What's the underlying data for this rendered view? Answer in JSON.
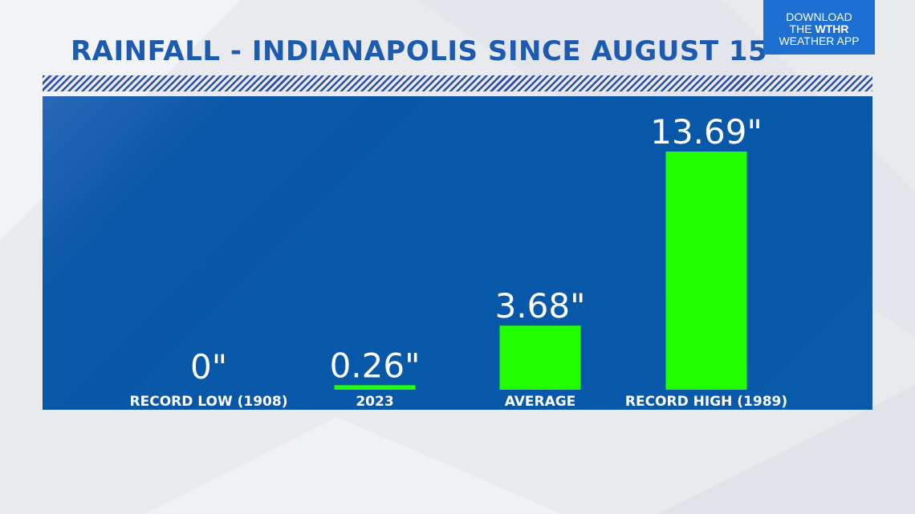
{
  "header": {
    "title": "RAINFALL - INDIANAPOLIS SINCE AUGUST 15"
  },
  "promo": {
    "line1": "DOWNLOAD",
    "line2_prefix": "THE ",
    "line2_brand": "WTHR",
    "line3": "WEATHER APP"
  },
  "colors": {
    "title": "#1c5bb0",
    "panel": "#0858aa",
    "bar": "#22ff00",
    "promo": "#1e6fd2",
    "stripe": "#2c4ea8"
  },
  "chart_data": {
    "type": "bar",
    "categories": [
      "RECORD LOW (1908)",
      "2023",
      "AVERAGE",
      "RECORD HIGH (1989)"
    ],
    "values": [
      0,
      0.26,
      3.68,
      13.69
    ],
    "value_labels": [
      "0\"",
      "0.26\"",
      "3.68\"",
      "13.69\""
    ],
    "title": "RAINFALL - INDIANAPOLIS SINCE AUGUST 15",
    "xlabel": "",
    "ylabel": "",
    "ylim": [
      0,
      13.69
    ],
    "grid": false,
    "legend": "none"
  }
}
